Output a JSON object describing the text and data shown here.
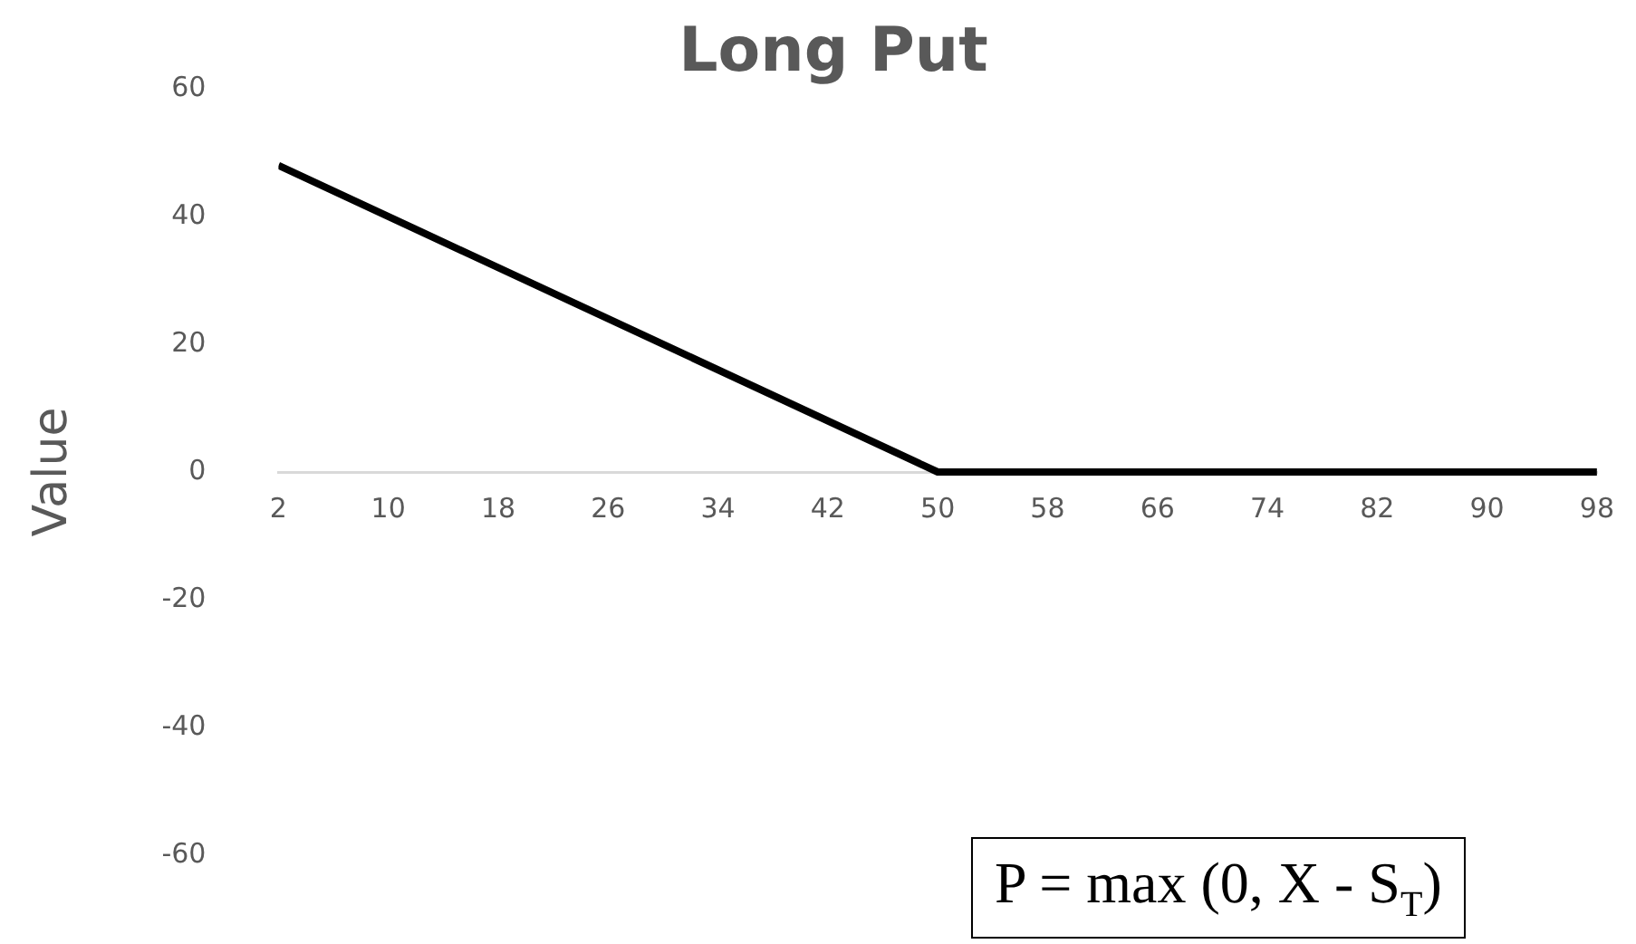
{
  "chart_data": {
    "type": "line",
    "title": "Long Put",
    "ylabel": "Value",
    "x": [
      2,
      50,
      98
    ],
    "series": [
      {
        "color": "#000000",
        "values": [
          48,
          0,
          0
        ]
      }
    ],
    "xlim": [
      2,
      98
    ],
    "xticks": [
      2,
      10,
      18,
      26,
      34,
      42,
      50,
      58,
      66,
      74,
      82,
      90,
      98
    ],
    "ylim": [
      -60,
      60
    ],
    "yticks": [
      -60,
      -40,
      -20,
      0,
      20,
      40,
      60
    ],
    "grid": false,
    "legend": false,
    "marker": "none",
    "line_style": "solid",
    "annotations": [
      "P = max (0, X - S$_{T}$)"
    ]
  }
}
